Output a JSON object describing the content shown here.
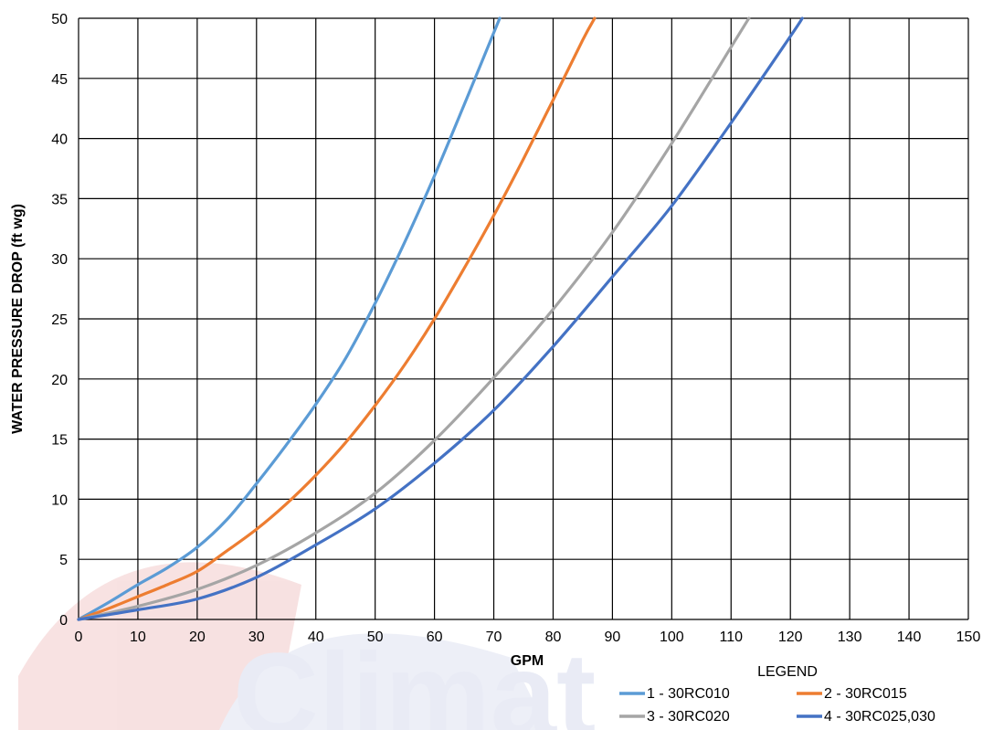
{
  "chart_data": {
    "type": "line",
    "xlabel": "GPM",
    "ylabel": "WATER PRESSURE DROP (ft wg)",
    "xlim": [
      0,
      150
    ],
    "ylim": [
      0,
      50
    ],
    "x_ticks": [
      0,
      10,
      20,
      30,
      40,
      50,
      60,
      70,
      80,
      90,
      100,
      110,
      120,
      130,
      140,
      150
    ],
    "y_ticks": [
      0,
      5,
      10,
      15,
      20,
      25,
      30,
      35,
      40,
      45,
      50
    ],
    "grid": true,
    "legend": {
      "title": "LEGEND",
      "placement": "bottom-right",
      "entries": [
        "1 - 30RC010",
        "2 - 30RC015",
        "3 - 30RC020",
        "4 - 30RC025,030"
      ]
    },
    "series": [
      {
        "name": "1 - 30RC010",
        "color": "#5b9bd5",
        "points": [
          [
            0,
            0
          ],
          [
            5,
            1.4
          ],
          [
            10,
            2.9
          ],
          [
            15,
            4.3
          ],
          [
            20,
            6.0
          ],
          [
            25,
            8.3
          ],
          [
            30,
            11.3
          ],
          [
            35,
            14.5
          ],
          [
            40,
            17.9
          ],
          [
            45,
            21.7
          ],
          [
            50,
            26.3
          ],
          [
            55,
            31.4
          ],
          [
            60,
            36.9
          ],
          [
            65,
            42.8
          ],
          [
            70,
            48.8
          ],
          [
            71,
            50
          ]
        ]
      },
      {
        "name": "2 - 30RC015",
        "color": "#ed7d31",
        "points": [
          [
            0,
            0
          ],
          [
            5,
            0.9
          ],
          [
            10,
            1.9
          ],
          [
            15,
            2.9
          ],
          [
            20,
            4.0
          ],
          [
            25,
            5.7
          ],
          [
            30,
            7.5
          ],
          [
            35,
            9.6
          ],
          [
            40,
            12.0
          ],
          [
            45,
            14.7
          ],
          [
            50,
            17.8
          ],
          [
            55,
            21.2
          ],
          [
            60,
            25.0
          ],
          [
            65,
            29.2
          ],
          [
            70,
            33.6
          ],
          [
            75,
            38.3
          ],
          [
            80,
            43.2
          ],
          [
            85,
            48.2
          ],
          [
            87,
            50
          ]
        ]
      },
      {
        "name": "3 - 30RC020",
        "color": "#a5a5a5",
        "points": [
          [
            0,
            0
          ],
          [
            10,
            1.1
          ],
          [
            20,
            2.5
          ],
          [
            30,
            4.5
          ],
          [
            40,
            7.2
          ],
          [
            50,
            10.5
          ],
          [
            60,
            14.9
          ],
          [
            70,
            20.1
          ],
          [
            80,
            25.8
          ],
          [
            90,
            32.2
          ],
          [
            100,
            39.6
          ],
          [
            110,
            47.6
          ],
          [
            113,
            50
          ]
        ]
      },
      {
        "name": "4 - 30RC025,030",
        "color": "#4472c4",
        "points": [
          [
            0,
            0
          ],
          [
            10,
            0.8
          ],
          [
            20,
            1.7
          ],
          [
            30,
            3.5
          ],
          [
            40,
            6.2
          ],
          [
            50,
            9.2
          ],
          [
            60,
            13.0
          ],
          [
            70,
            17.4
          ],
          [
            80,
            22.7
          ],
          [
            90,
            28.5
          ],
          [
            100,
            34.4
          ],
          [
            110,
            41.3
          ],
          [
            120,
            48.5
          ],
          [
            122,
            50
          ]
        ]
      }
    ]
  }
}
